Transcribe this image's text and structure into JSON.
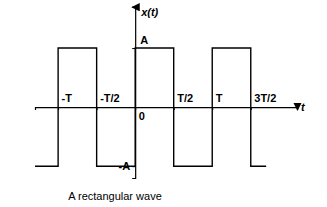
{
  "chart_data": {
    "type": "line",
    "title": "A rectangular wave",
    "x_label": "t",
    "y_label": "x(t)",
    "x": [
      -1.3,
      -1,
      -1,
      -0.5,
      -0.5,
      0,
      0,
      0.5,
      0.5,
      1,
      1,
      1.5,
      1.5,
      1.7
    ],
    "values": [
      -1,
      -1,
      1,
      1,
      -1,
      -1,
      1,
      1,
      -1,
      -1,
      1,
      1,
      -1,
      -1
    ],
    "color": "#000000",
    "line_style": "solid",
    "xlim": [
      -1.3,
      2.1
    ],
    "ylim": [
      -1.2,
      1.7
    ],
    "xticks": [
      {
        "value": -1,
        "label": "-T"
      },
      {
        "value": -0.5,
        "label": "-T/2"
      },
      0,
      {
        "value": 0.5,
        "label": "T/2"
      },
      {
        "value": 1,
        "label": "T"
      },
      {
        "value": 1.5,
        "label": "3T/2"
      }
    ],
    "yticks": [
      {
        "value": 1,
        "label": "A"
      },
      {
        "value": -1,
        "label": "-A"
      }
    ],
    "grid": false
  }
}
